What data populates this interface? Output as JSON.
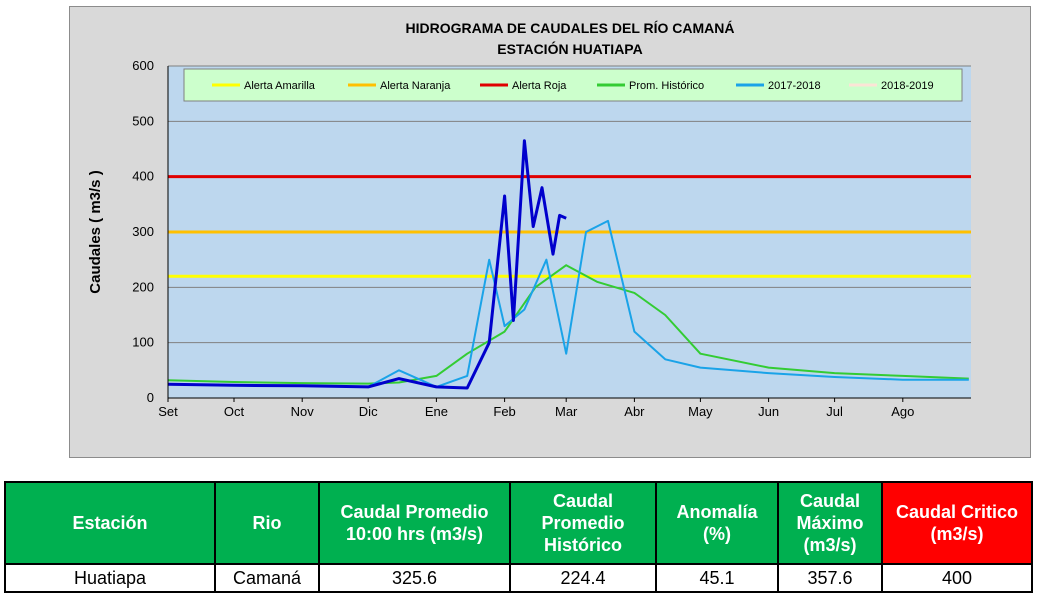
{
  "chart_data": {
    "type": "line",
    "title": "HIDROGRAMA DE CAUDALES DEL RÍO CAMANÁ",
    "subtitle": "ESTACIÓN HUATIAPA",
    "ylabel": "Caudales ( m3/s )",
    "xlabel": "",
    "ylim": [
      0,
      600
    ],
    "yticks": [
      "0",
      "100",
      "200",
      "300",
      "400",
      "500",
      "600"
    ],
    "months": [
      "Set",
      "Oct",
      "Nov",
      "Dic",
      "Ene",
      "Feb",
      "Mar",
      "Abr",
      "May",
      "Jun",
      "Jul",
      "Ago"
    ],
    "grid": true,
    "legend_position": "top",
    "thresholds": [
      {
        "name": "Alerta Amarilla",
        "value": 220,
        "color": "#ffff00"
      },
      {
        "name": "Alerta Naranja",
        "value": 300,
        "color": "#ffc000"
      },
      {
        "name": "Alerta Roja",
        "value": 400,
        "color": "#e00000"
      }
    ],
    "series": [
      {
        "name": "Prom. Histórico",
        "color": "#33cc33",
        "x": [
          "Set 1",
          "Oct 1",
          "Nov 1",
          "Dic 1",
          "Dic 15",
          "Ene 1",
          "Ene 15",
          "Feb 1",
          "Feb 15",
          "Mar 1",
          "Mar 15",
          "Abr 1",
          "Abr 15",
          "May 1",
          "Jun 1",
          "Jul 1",
          "Ago 1",
          "Ago 31"
        ],
        "y": [
          32,
          29,
          27,
          26,
          28,
          40,
          80,
          120,
          200,
          240,
          210,
          190,
          150,
          80,
          55,
          45,
          40,
          35
        ]
      },
      {
        "name": "2017-2018",
        "color": "#1aa3e8",
        "x": [
          "Set 1",
          "Oct 1",
          "Nov 1",
          "Dic 1",
          "Dic 15",
          "Ene 1",
          "Ene 15",
          "Ene 25",
          "Feb 1",
          "Feb 10",
          "Feb 20",
          "Mar 1",
          "Mar 10",
          "Mar 20",
          "Abr 1",
          "Abr 15",
          "May 1",
          "Jun 1",
          "Jul 1",
          "Ago 1",
          "Ago 31"
        ],
        "y": [
          25,
          23,
          22,
          20,
          50,
          20,
          40,
          250,
          130,
          160,
          250,
          80,
          300,
          320,
          120,
          70,
          55,
          45,
          38,
          33,
          33
        ]
      },
      {
        "name": "2018-2019",
        "color": "#0000cc",
        "x": [
          "Set 1",
          "Oct 1",
          "Nov 1",
          "Dic 1",
          "Dic 15",
          "Ene 1",
          "Ene 15",
          "Ene 25",
          "Feb 1",
          "Feb 5",
          "Feb 10",
          "Feb 14",
          "Feb 18",
          "Feb 23",
          "Feb 26",
          "Mar 1"
        ],
        "y": [
          25,
          23,
          22,
          20,
          35,
          20,
          18,
          100,
          365,
          140,
          465,
          310,
          380,
          260,
          330,
          325
        ]
      }
    ]
  },
  "table": {
    "headers": [
      "Estación",
      "Rio",
      "Caudal Promedio 10:00 hrs (m3/s)",
      "Caudal Promedio Histórico",
      "Anomalía (%)",
      "Caudal Máximo (m3/s)",
      "Caudal Critico (m3/s)"
    ],
    "row": [
      "Huatiapa",
      "Camaná",
      "325.6",
      "224.4",
      "45.1",
      "357.6",
      "400"
    ],
    "colors": {
      "header_bg": "#00b050",
      "critical_bg": "#ff0000"
    }
  }
}
